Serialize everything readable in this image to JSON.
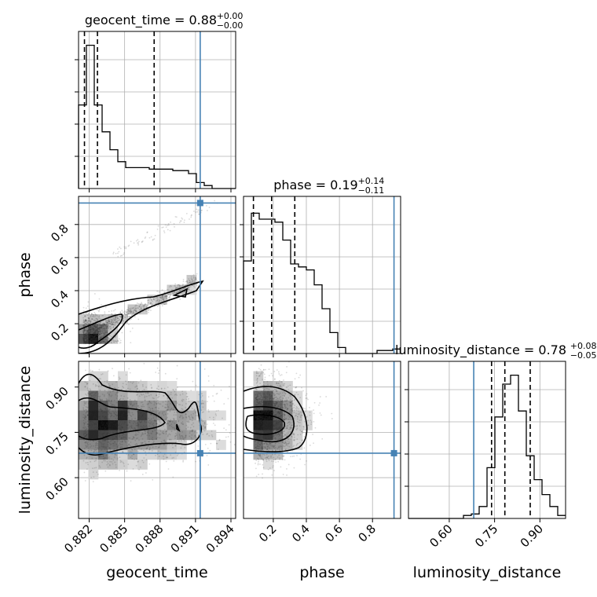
{
  "chart_data": {
    "type": "corner",
    "parameters": [
      "geocent_time",
      "phase",
      "luminosity_distance"
    ],
    "axis_labels": {
      "geocent_time": "geocent_time",
      "phase": "phase",
      "luminosity_distance": "luminosity_distance"
    },
    "titles": {
      "geocent_time": {
        "main": "geocent_time = 0.88",
        "plus": "+0.00",
        "minus": "−0.00"
      },
      "phase": {
        "main": "phase = 0.19",
        "plus": "+0.14",
        "minus": "−0.11"
      },
      "luminosity_distance": {
        "main": "luminosity_distance = 0.78",
        "plus": "+0.08",
        "minus": "−0.05"
      }
    },
    "ranges": {
      "geocent_time": [
        0.8811,
        0.8944
      ],
      "phase": [
        0.02,
        0.97
      ],
      "luminosity_distance": [
        0.465,
        0.985
      ]
    },
    "ticks": {
      "geocent_time": [
        {
          "v": 0.882,
          "label": "0.882"
        },
        {
          "v": 0.885,
          "label": "0.885"
        },
        {
          "v": 0.888,
          "label": "0.888"
        },
        {
          "v": 0.891,
          "label": "0.891"
        },
        {
          "v": 0.894,
          "label": "0.894"
        }
      ],
      "phase": [
        {
          "v": 0.2,
          "label": "0.2"
        },
        {
          "v": 0.4,
          "label": "0.4"
        },
        {
          "v": 0.6,
          "label": "0.6"
        },
        {
          "v": 0.8,
          "label": "0.8"
        }
      ],
      "luminosity_distance": [
        {
          "v": 0.6,
          "label": "0.60"
        },
        {
          "v": 0.75,
          "label": "0.75"
        },
        {
          "v": 0.9,
          "label": "0.90"
        }
      ]
    },
    "truths": {
      "geocent_time": 0.8914,
      "phase": 0.93,
      "luminosity_distance": 0.681
    },
    "quantiles": {
      "geocent_time": [
        0.8816,
        0.8827,
        0.8875
      ],
      "phase": [
        0.08,
        0.19,
        0.33
      ],
      "luminosity_distance": [
        0.74,
        0.784,
        0.868
      ]
    },
    "histograms": {
      "geocent_time": [
        0.56,
        0.96,
        0.56,
        0.38,
        0.26,
        0.18,
        0.14,
        0.14,
        0.14,
        0.13,
        0.13,
        0.13,
        0.12,
        0.12,
        0.1,
        0.04,
        0.02,
        0,
        0,
        0
      ],
      "phase": [
        0.62,
        0.94,
        0.9,
        0.9,
        0.88,
        0.76,
        0.6,
        0.58,
        0.56,
        0.46,
        0.3,
        0.14,
        0.04,
        0,
        0,
        0,
        0,
        0.02,
        0.02,
        0.03
      ],
      "luminosity_distance": [
        0,
        0,
        0,
        0,
        0,
        0,
        0,
        0.02,
        0.03,
        0.08,
        0.34,
        0.68,
        0.9,
        0.96,
        0.72,
        0.42,
        0.26,
        0.16,
        0.08,
        0.02
      ]
    },
    "grid": true
  }
}
